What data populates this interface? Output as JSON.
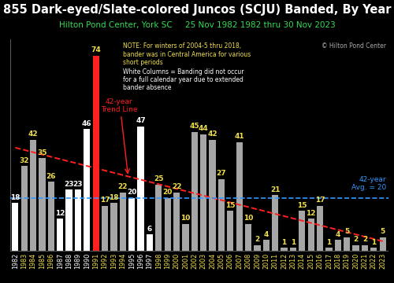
{
  "chart_data": {
    "type": "bar",
    "title": "855 Dark-eyed/Slate-colored Juncos (SCJU) Banded, By Year",
    "subtitle": "Hilton Pond Center, York SC     25 Nov 1982 1982 thru 30 Nov 2023",
    "categories": [
      "1982",
      "1983",
      "1984",
      "1985",
      "1986",
      "1987",
      "1988",
      "1989",
      "1990",
      "1991",
      "1992",
      "1993",
      "1994",
      "1995",
      "1996",
      "1997",
      "1998",
      "1999",
      "2000",
      "2001",
      "2002",
      "2003",
      "2004",
      "2005",
      "2006",
      "2007",
      "2008",
      "2009",
      "2010",
      "2011",
      "2012",
      "2013",
      "2014",
      "2015",
      "2016",
      "2017",
      "2018",
      "2019",
      "2020",
      "2021",
      "2022",
      "2023"
    ],
    "values": [
      18,
      32,
      42,
      35,
      26,
      12,
      23,
      23,
      46,
      74,
      17,
      18,
      22,
      20,
      47,
      6,
      25,
      20,
      22,
      10,
      45,
      44,
      42,
      27,
      15,
      41,
      10,
      2,
      4,
      21,
      1,
      1,
      15,
      12,
      17,
      1,
      4,
      5,
      2,
      2,
      1,
      5
    ],
    "colors": [
      "#ffffff",
      "#a6a6a6",
      "#a6a6a6",
      "#a6a6a6",
      "#a6a6a6",
      "#ffffff",
      "#ffffff",
      "#ffffff",
      "#ffffff",
      "#ff2020",
      "#a6a6a6",
      "#a6a6a6",
      "#a6a6a6",
      "#ffffff",
      "#ffffff",
      "#ffffff",
      "#a6a6a6",
      "#a6a6a6",
      "#a6a6a6",
      "#a6a6a6",
      "#a6a6a6",
      "#a6a6a6",
      "#a6a6a6",
      "#a6a6a6",
      "#a6a6a6",
      "#a6a6a6",
      "#a6a6a6",
      "#a6a6a6",
      "#a6a6a6",
      "#a6a6a6",
      "#a6a6a6",
      "#a6a6a6",
      "#a6a6a6",
      "#a6a6a6",
      "#a6a6a6",
      "#a6a6a6",
      "#a6a6a6",
      "#a6a6a6",
      "#a6a6a6",
      "#a6a6a6",
      "#a6a6a6",
      "#a6a6a6"
    ],
    "data_labels": true,
    "tick_labels": "x",
    "ylim": [
      0,
      80
    ],
    "yticks": [],
    "grid": false,
    "trend_line": {
      "label": "42-year\nTrend Line",
      "values": [
        39,
        3.5
      ],
      "color": "#ff2020",
      "line_style": "dashed"
    },
    "average": {
      "label": "42-year\nAvg. = 20",
      "value": 20,
      "color": "#3399ff",
      "line_style": "dashed"
    },
    "annotations": [
      "NOTE: For winters of 2004-5 thru 2018,\nbander was in Central America for various\nshort periods",
      "White Columns = Banding did not occur\nfor a full calendar year due to extended\nbander absence"
    ],
    "copyright": "© Hilton Pond Center"
  }
}
